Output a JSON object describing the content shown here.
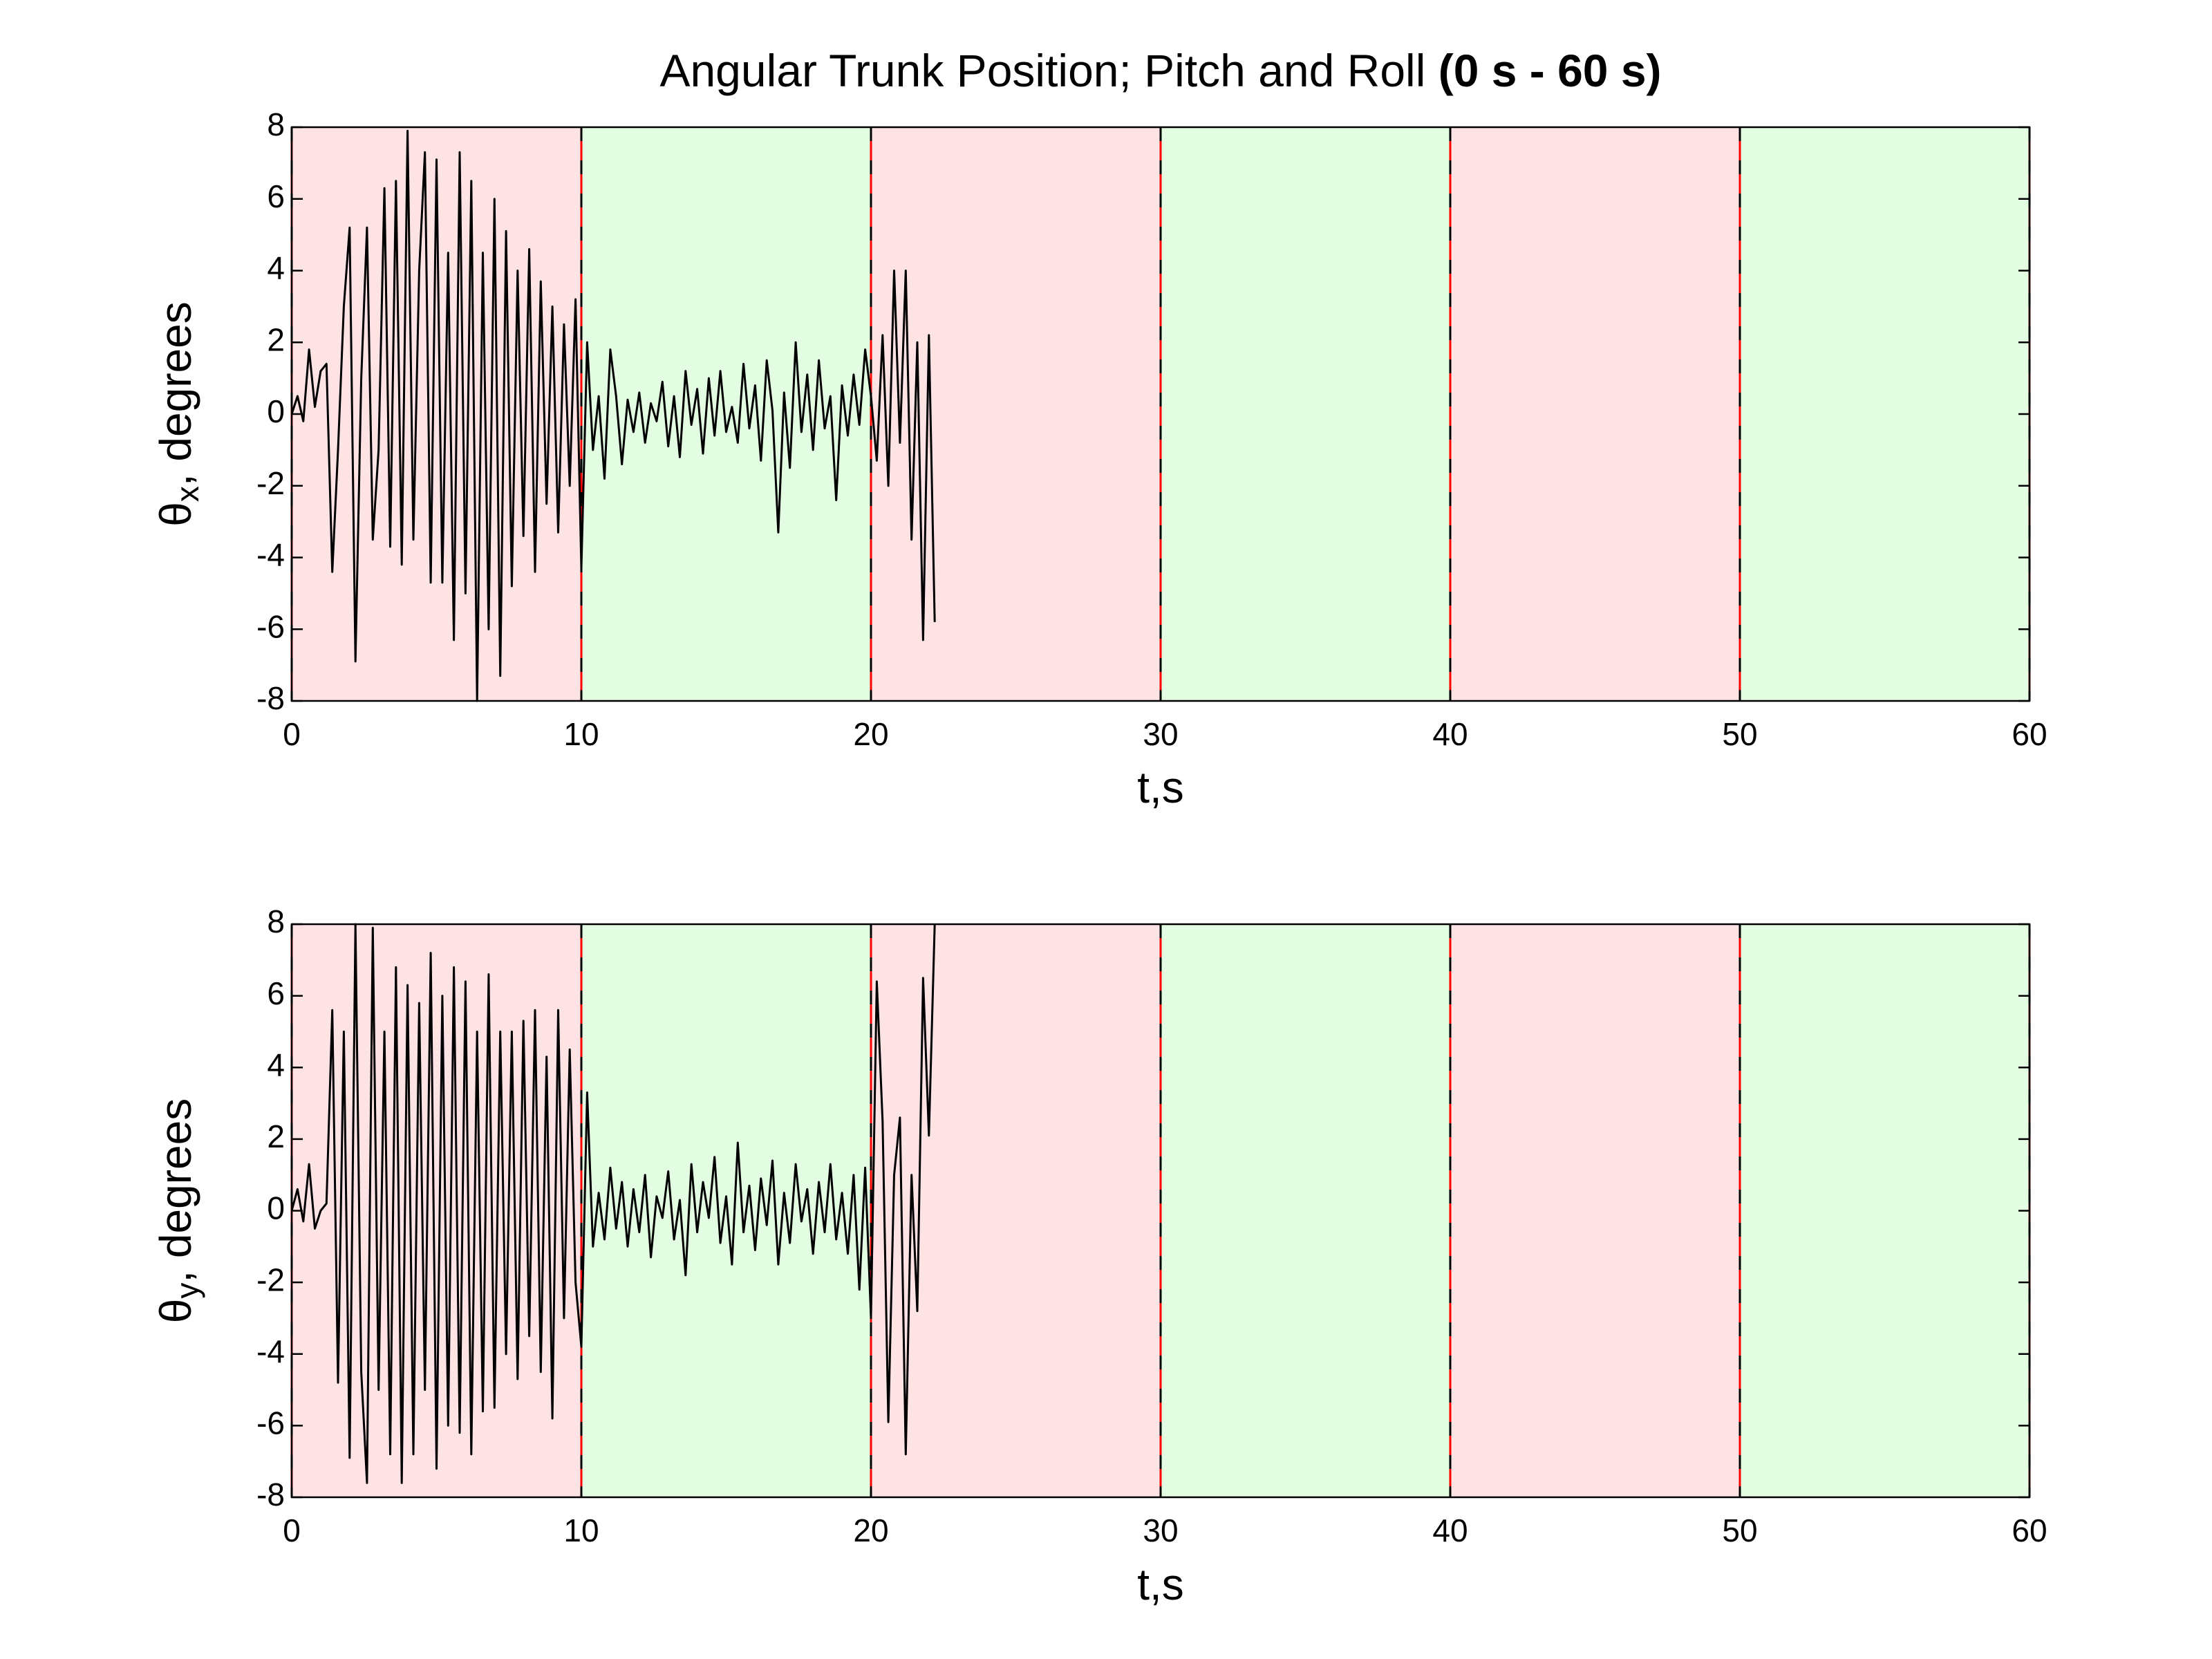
{
  "chart_data": [
    {
      "type": "line",
      "title": "Angular Trunk Position; Pitch and Roll",
      "title_emphasis": "(0 s - 60 s)",
      "xlabel": "t,s",
      "ylabel": {
        "symbol": "θ",
        "subscript": "x",
        "text": ", degrees"
      },
      "xlim": [
        0,
        60
      ],
      "xticks": [
        0,
        10,
        20,
        30,
        40,
        50,
        60
      ],
      "ylim": [
        -8,
        8
      ],
      "yticks": [
        -8,
        -6,
        -4,
        -2,
        0,
        2,
        4,
        6,
        8
      ],
      "color": "#000000",
      "bands": [
        {
          "x0": 0,
          "x1": 10,
          "color": "#fde3e3"
        },
        {
          "x0": 10,
          "x1": 20,
          "color": "#e2fde2"
        },
        {
          "x0": 20,
          "x1": 30,
          "color": "#fde3e3"
        },
        {
          "x0": 30,
          "x1": 40,
          "color": "#e2fde2"
        },
        {
          "x0": 40,
          "x1": 50,
          "color": "#fde3e3"
        },
        {
          "x0": 50,
          "x1": 60,
          "color": "#e2fde2"
        }
      ],
      "x": [
        0,
        0.2,
        0.4,
        0.6,
        0.8,
        1,
        1.2,
        1.4,
        1.6,
        1.8,
        2,
        2.2,
        2.4,
        2.6,
        2.8,
        3,
        3.2,
        3.4,
        3.6,
        3.8,
        4,
        4.2,
        4.4,
        4.6,
        4.8,
        5,
        5.2,
        5.4,
        5.6,
        5.8,
        6,
        6.2,
        6.4,
        6.6,
        6.8,
        7,
        7.2,
        7.4,
        7.6,
        7.8,
        8,
        8.2,
        8.4,
        8.6,
        8.8,
        9,
        9.2,
        9.4,
        9.6,
        9.8,
        10,
        10.2,
        10.4,
        10.6,
        10.8,
        11,
        11.2,
        11.4,
        11.6,
        11.8,
        12,
        12.2,
        12.4,
        12.6,
        12.8,
        13,
        13.2,
        13.4,
        13.6,
        13.8,
        14,
        14.2,
        14.4,
        14.6,
        14.8,
        15,
        15.2,
        15.4,
        15.6,
        15.8,
        16,
        16.2,
        16.4,
        16.6,
        16.8,
        17,
        17.2,
        17.4,
        17.6,
        17.8,
        18,
        18.2,
        18.4,
        18.6,
        18.8,
        19,
        19.2,
        19.4,
        19.6,
        19.8,
        20,
        20.2,
        20.4,
        20.6,
        20.8,
        21,
        21.2,
        21.4,
        21.6,
        21.8,
        22,
        22.2
      ],
      "values": [
        0,
        0.5,
        -0.2,
        1.8,
        0.2,
        1.2,
        1.4,
        -4.4,
        -1,
        3,
        5.2,
        -6.9,
        1,
        5.2,
        -3.5,
        -1,
        6.3,
        -3.7,
        6.5,
        -4.2,
        7.9,
        -3.5,
        4,
        7.3,
        -4.7,
        7.1,
        -4.7,
        4.5,
        -6.3,
        7.3,
        -5,
        6.5,
        -8,
        4.5,
        -6,
        6,
        -7.3,
        5.1,
        -4.8,
        4,
        -3.4,
        4.6,
        -4.4,
        3.7,
        -2.5,
        3,
        -3.3,
        2.5,
        -2,
        3.2,
        -4.3,
        2,
        -1,
        0.5,
        -1.8,
        1.8,
        0.5,
        -1.4,
        0.4,
        -0.5,
        0.6,
        -0.8,
        0.3,
        -0.2,
        0.9,
        -0.9,
        0.5,
        -1.2,
        1.2,
        -0.3,
        0.7,
        -1.1,
        1,
        -0.6,
        1.2,
        -0.5,
        0.2,
        -0.8,
        1.4,
        -0.4,
        0.8,
        -1.3,
        1.5,
        0.1,
        -3.3,
        0.6,
        -1.5,
        2,
        -0.5,
        1.1,
        -1,
        1.5,
        -0.4,
        0.5,
        -2.4,
        0.8,
        -0.6,
        1.1,
        -0.3,
        1.8,
        0.5,
        -1.3,
        2.2,
        -2,
        4,
        -0.8,
        4,
        -3.5,
        2,
        -6.3,
        2.2,
        -5.8
      ]
    },
    {
      "type": "line",
      "xlabel": "t,s",
      "ylabel": {
        "symbol": "θ",
        "subscript": "y",
        "text": ", degrees"
      },
      "xlim": [
        0,
        60
      ],
      "xticks": [
        0,
        10,
        20,
        30,
        40,
        50,
        60
      ],
      "ylim": [
        -8,
        8
      ],
      "yticks": [
        -8,
        -6,
        -4,
        -2,
        0,
        2,
        4,
        6,
        8
      ],
      "color": "#000000",
      "bands": [
        {
          "x0": 0,
          "x1": 10,
          "color": "#fde3e3"
        },
        {
          "x0": 10,
          "x1": 20,
          "color": "#e2fde2"
        },
        {
          "x0": 20,
          "x1": 30,
          "color": "#fde3e3"
        },
        {
          "x0": 30,
          "x1": 40,
          "color": "#e2fde2"
        },
        {
          "x0": 40,
          "x1": 50,
          "color": "#fde3e3"
        },
        {
          "x0": 50,
          "x1": 60,
          "color": "#e2fde2"
        }
      ],
      "x": [
        0,
        0.2,
        0.4,
        0.6,
        0.8,
        1,
        1.2,
        1.4,
        1.6,
        1.8,
        2,
        2.2,
        2.4,
        2.6,
        2.8,
        3,
        3.2,
        3.4,
        3.6,
        3.8,
        4,
        4.2,
        4.4,
        4.6,
        4.8,
        5,
        5.2,
        5.4,
        5.6,
        5.8,
        6,
        6.2,
        6.4,
        6.6,
        6.8,
        7,
        7.2,
        7.4,
        7.6,
        7.8,
        8,
        8.2,
        8.4,
        8.6,
        8.8,
        9,
        9.2,
        9.4,
        9.6,
        9.8,
        10,
        10.2,
        10.4,
        10.6,
        10.8,
        11,
        11.2,
        11.4,
        11.6,
        11.8,
        12,
        12.2,
        12.4,
        12.6,
        12.8,
        13,
        13.2,
        13.4,
        13.6,
        13.8,
        14,
        14.2,
        14.4,
        14.6,
        14.8,
        15,
        15.2,
        15.4,
        15.6,
        15.8,
        16,
        16.2,
        16.4,
        16.6,
        16.8,
        17,
        17.2,
        17.4,
        17.6,
        17.8,
        18,
        18.2,
        18.4,
        18.6,
        18.8,
        19,
        19.2,
        19.4,
        19.6,
        19.8,
        20,
        20.2,
        20.4,
        20.6,
        20.8,
        21,
        21.2,
        21.4,
        21.6,
        21.8,
        22,
        22.2
      ],
      "values": [
        0,
        0.6,
        -0.3,
        1.3,
        -0.5,
        0,
        0.2,
        5.6,
        -4.8,
        5,
        -6.9,
        8,
        -4.5,
        -7.6,
        7.9,
        -5,
        5,
        -6.8,
        6.8,
        -7.6,
        6.3,
        -6.8,
        5.8,
        -5,
        7.2,
        -7.2,
        6,
        -6,
        6.8,
        -6.2,
        6.4,
        -6.8,
        5,
        -5.6,
        6.6,
        -5.5,
        5,
        -4,
        5,
        -4.7,
        5.3,
        -3.5,
        5.6,
        -4.5,
        4.3,
        -5.8,
        5.6,
        -3,
        4.5,
        -2,
        -3.8,
        3.3,
        -1,
        0.5,
        -0.8,
        1.2,
        -0.5,
        0.8,
        -1,
        0.6,
        -0.6,
        1,
        -1.3,
        0.4,
        -0.2,
        1.1,
        -0.8,
        0.3,
        -1.8,
        1.3,
        -0.6,
        0.8,
        -0.2,
        1.5,
        -0.9,
        0.4,
        -1.5,
        1.9,
        -0.6,
        0.7,
        -1.1,
        0.9,
        -0.4,
        1.4,
        -1.5,
        0.5,
        -0.9,
        1.3,
        -0.3,
        0.6,
        -1.2,
        0.8,
        -0.6,
        1.3,
        -0.8,
        0.5,
        -1.2,
        1,
        -2.2,
        1.2,
        -3,
        6.4,
        2.5,
        -5.9,
        1,
        2.6,
        -6.8,
        1,
        -2.8,
        6.5,
        2.1,
        8
      ]
    }
  ]
}
